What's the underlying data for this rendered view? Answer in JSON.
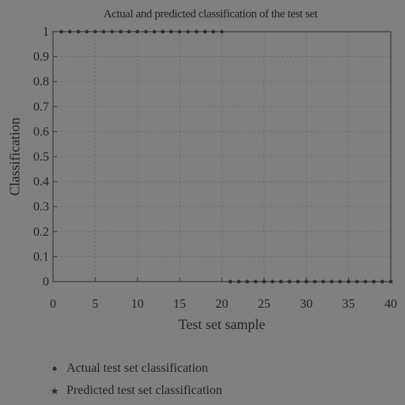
{
  "chart_data": {
    "type": "scatter",
    "title": "Actual and predicted classification of the test set",
    "xlabel": "Test set sample",
    "ylabel": "Classification",
    "xlim": [
      0,
      40
    ],
    "ylim": [
      0,
      1
    ],
    "xticks": [
      0,
      5,
      10,
      15,
      20,
      25,
      30,
      35,
      40
    ],
    "yticks": [
      0,
      0.1,
      0.2,
      0.3,
      0.4,
      0.5,
      0.6,
      0.7,
      0.8,
      0.9,
      1
    ],
    "grid": true,
    "legend_position": "bottom-left",
    "x": [
      1,
      2,
      3,
      4,
      5,
      6,
      7,
      8,
      9,
      10,
      11,
      12,
      13,
      14,
      15,
      16,
      17,
      18,
      19,
      20,
      21,
      22,
      23,
      24,
      25,
      26,
      27,
      28,
      29,
      30,
      31,
      32,
      33,
      34,
      35,
      36,
      37,
      38,
      39,
      40
    ],
    "series": [
      {
        "name": "Actual test set classification",
        "marker": "circle",
        "values": [
          1,
          1,
          1,
          1,
          1,
          1,
          1,
          1,
          1,
          1,
          1,
          1,
          1,
          1,
          1,
          1,
          1,
          1,
          1,
          1,
          0,
          0,
          0,
          0,
          0,
          0,
          0,
          0,
          0,
          0,
          0,
          0,
          0,
          0,
          0,
          0,
          0,
          0,
          0,
          0
        ]
      },
      {
        "name": "Predicted test set classification",
        "marker": "star",
        "values": [
          1,
          1,
          1,
          1,
          1,
          1,
          1,
          1,
          1,
          1,
          1,
          1,
          1,
          1,
          1,
          1,
          1,
          1,
          1,
          1,
          0,
          0,
          0,
          0,
          0,
          0,
          0,
          0,
          0,
          0,
          0,
          0,
          0,
          0,
          0,
          0,
          0,
          0,
          0,
          0
        ]
      }
    ]
  },
  "colors": {
    "background": "#808080",
    "axes": "#3a3a3a",
    "grid": "#6a6a6a",
    "marker": "#2e2e2e",
    "text": "#222222"
  }
}
